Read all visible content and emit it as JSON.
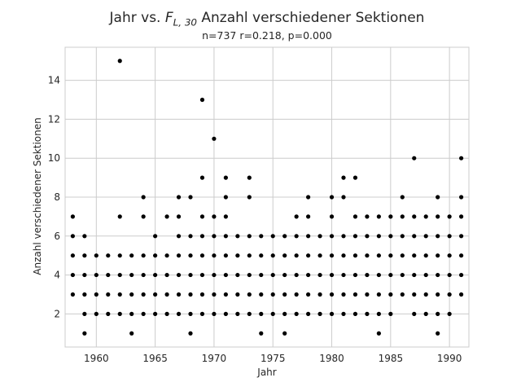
{
  "chart_data": {
    "type": "scatter",
    "title_prefix": "Jahr vs. ",
    "title_symbol": "F",
    "title_subscript": "L, 30",
    "title_suffix": " Anzahl verschiedener Sektionen",
    "subtitle": "n=737 r=0.218, p=0.000",
    "xlabel": "Jahr",
    "ylabel": "Anzahl verschiedener Sektionen",
    "xlim": [
      1957.35,
      1991.65
    ],
    "ylim": [
      0.3,
      15.7
    ],
    "xticks": [
      1960,
      1965,
      1970,
      1975,
      1980,
      1985,
      1990
    ],
    "yticks": [
      2,
      4,
      6,
      8,
      10,
      12,
      14
    ],
    "grid": true,
    "marker_color": "#000000",
    "points_by_year": [
      {
        "x": 1958,
        "y": [
          3,
          4,
          5,
          6,
          7
        ]
      },
      {
        "x": 1959,
        "y": [
          1,
          2,
          3,
          4,
          5,
          6
        ]
      },
      {
        "x": 1960,
        "y": [
          2,
          3,
          4,
          5
        ]
      },
      {
        "x": 1961,
        "y": [
          2,
          3,
          4,
          5
        ]
      },
      {
        "x": 1962,
        "y": [
          2,
          3,
          4,
          5,
          7,
          15
        ]
      },
      {
        "x": 1963,
        "y": [
          1,
          2,
          3,
          4,
          5
        ]
      },
      {
        "x": 1964,
        "y": [
          2,
          3,
          4,
          5,
          7,
          8
        ]
      },
      {
        "x": 1965,
        "y": [
          2,
          3,
          4,
          5,
          6
        ]
      },
      {
        "x": 1966,
        "y": [
          2,
          3,
          4,
          5,
          7
        ]
      },
      {
        "x": 1967,
        "y": [
          2,
          3,
          4,
          5,
          6,
          7,
          8
        ]
      },
      {
        "x": 1968,
        "y": [
          1,
          2,
          3,
          4,
          5,
          6,
          8
        ]
      },
      {
        "x": 1969,
        "y": [
          2,
          3,
          4,
          5,
          6,
          7,
          9,
          13
        ]
      },
      {
        "x": 1970,
        "y": [
          2,
          3,
          4,
          5,
          6,
          7,
          11
        ]
      },
      {
        "x": 1971,
        "y": [
          2,
          3,
          4,
          5,
          6,
          7,
          8,
          9
        ]
      },
      {
        "x": 1972,
        "y": [
          2,
          3,
          4,
          5,
          6
        ]
      },
      {
        "x": 1973,
        "y": [
          2,
          3,
          4,
          5,
          6,
          8,
          9
        ]
      },
      {
        "x": 1974,
        "y": [
          1,
          2,
          3,
          4,
          5,
          6
        ]
      },
      {
        "x": 1975,
        "y": [
          2,
          3,
          4,
          5,
          6
        ]
      },
      {
        "x": 1976,
        "y": [
          1,
          2,
          3,
          4,
          5,
          6
        ]
      },
      {
        "x": 1977,
        "y": [
          2,
          3,
          4,
          5,
          6,
          7
        ]
      },
      {
        "x": 1978,
        "y": [
          2,
          3,
          4,
          5,
          6,
          7,
          8
        ]
      },
      {
        "x": 1979,
        "y": [
          2,
          3,
          4,
          5,
          6
        ]
      },
      {
        "x": 1980,
        "y": [
          2,
          3,
          4,
          5,
          6,
          7,
          8
        ]
      },
      {
        "x": 1981,
        "y": [
          2,
          3,
          4,
          5,
          6,
          8,
          9
        ]
      },
      {
        "x": 1982,
        "y": [
          2,
          3,
          4,
          5,
          6,
          7,
          9
        ]
      },
      {
        "x": 1983,
        "y": [
          2,
          3,
          4,
          5,
          6,
          7
        ]
      },
      {
        "x": 1984,
        "y": [
          1,
          2,
          3,
          4,
          5,
          6,
          7
        ]
      },
      {
        "x": 1985,
        "y": [
          2,
          3,
          4,
          5,
          6,
          7
        ]
      },
      {
        "x": 1986,
        "y": [
          3,
          4,
          5,
          6,
          7,
          8
        ]
      },
      {
        "x": 1987,
        "y": [
          2,
          3,
          4,
          5,
          6,
          7,
          10
        ]
      },
      {
        "x": 1988,
        "y": [
          2,
          3,
          4,
          5,
          6,
          7
        ]
      },
      {
        "x": 1989,
        "y": [
          1,
          2,
          3,
          4,
          5,
          6,
          7,
          8
        ]
      },
      {
        "x": 1990,
        "y": [
          2,
          3,
          4,
          5,
          6,
          7
        ]
      },
      {
        "x": 1991,
        "y": [
          3,
          4,
          5,
          6,
          7,
          8,
          10
        ]
      }
    ]
  }
}
